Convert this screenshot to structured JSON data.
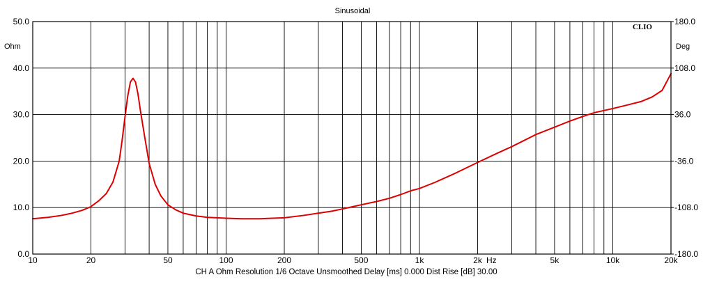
{
  "chart_data": {
    "type": "line",
    "title": "Sinusoidal",
    "brand": "CLIO",
    "x_scale": "log",
    "xlim": [
      10,
      20000
    ],
    "x_ticks": [
      {
        "value": 10,
        "label": "10"
      },
      {
        "value": 20,
        "label": "20"
      },
      {
        "value": 50,
        "label": "50"
      },
      {
        "value": 100,
        "label": "100"
      },
      {
        "value": 200,
        "label": "200"
      },
      {
        "value": 500,
        "label": "500"
      },
      {
        "value": 1000,
        "label": "1k"
      },
      {
        "value": 2000,
        "label": "2k"
      },
      {
        "value": 5000,
        "label": "5k"
      },
      {
        "value": 10000,
        "label": "10k"
      },
      {
        "value": 20000,
        "label": "20k"
      }
    ],
    "x_unit": "Hz",
    "ylim": [
      0,
      50
    ],
    "y_ticks": [
      "50.0",
      "40.0",
      "30.0",
      "20.0",
      "10.0",
      "0.0"
    ],
    "y_unit": "Ohm",
    "y2lim": [
      -180,
      180
    ],
    "y2_ticks": [
      "180.0",
      "108.0",
      "36.0",
      "-36.0",
      "-108.0",
      "-180.0"
    ],
    "y2_unit": "Deg",
    "grid": true,
    "series": [
      {
        "color": "#dd0000",
        "x": [
          10,
          12,
          14,
          16,
          18,
          20,
          22,
          24,
          26,
          28,
          29,
          30,
          31,
          32,
          33,
          34,
          35,
          36,
          38,
          40,
          43,
          46,
          50,
          55,
          60,
          70,
          80,
          100,
          120,
          150,
          200,
          250,
          300,
          350,
          400,
          500,
          600,
          700,
          800,
          900,
          1000,
          1200,
          1500,
          2000,
          2500,
          3000,
          4000,
          5000,
          6000,
          7000,
          8000,
          10000,
          12000,
          14000,
          16000,
          18000,
          20000
        ],
        "y": [
          7.6,
          7.9,
          8.3,
          8.8,
          9.4,
          10.2,
          11.5,
          13.0,
          15.5,
          20.0,
          24.5,
          29.5,
          34.0,
          37.0,
          37.8,
          37.0,
          34.5,
          31.0,
          25.0,
          19.5,
          15.0,
          12.5,
          10.6,
          9.5,
          8.8,
          8.2,
          7.9,
          7.7,
          7.6,
          7.6,
          7.8,
          8.3,
          8.8,
          9.2,
          9.7,
          10.6,
          11.3,
          12.0,
          12.8,
          13.6,
          14.1,
          15.4,
          17.2,
          19.7,
          21.6,
          23.1,
          25.7,
          27.3,
          28.6,
          29.6,
          30.4,
          31.3,
          32.1,
          32.8,
          33.8,
          35.2,
          38.8
        ]
      }
    ],
    "footer": "CH A   Ohm   Resolution 1/6 Octave   Unsmoothed   Delay [ms] 0.000   Dist Rise [dB] 30.00"
  }
}
